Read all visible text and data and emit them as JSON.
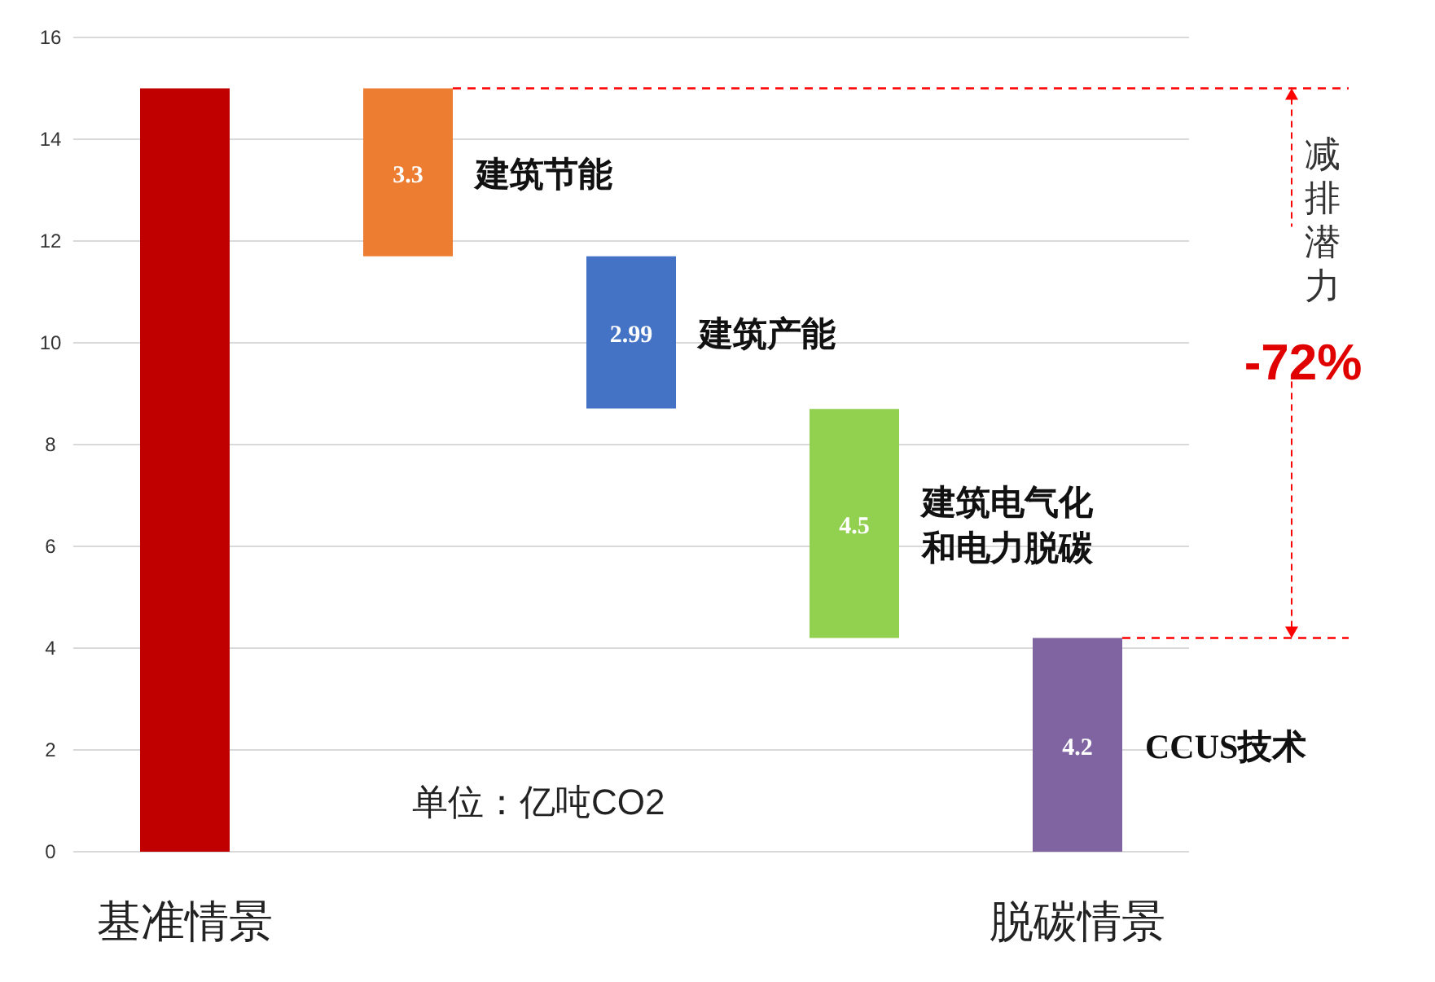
{
  "chart_data": {
    "type": "bar",
    "categories": [
      "基准情景",
      null,
      null,
      null,
      "脱碳情景"
    ],
    "values": [
      15,
      3.3,
      2.99,
      4.5,
      4.2
    ],
    "base": [
      0,
      11.7,
      8.71,
      4.2,
      0
    ],
    "colors": [
      "#c00000",
      "#ed7d31",
      "#4472c4",
      "#92d050",
      "#8064a2"
    ],
    "value_labels": [
      null,
      "3.3",
      "2.99",
      "4.5",
      "4.2"
    ],
    "ylim": [
      0,
      16
    ],
    "yticks": [
      0,
      2,
      4,
      6,
      8,
      10,
      12,
      14,
      16
    ],
    "grid": "y",
    "ref_lines": [
      {
        "axis": "y",
        "value": 15,
        "color": "#ff0000",
        "line_style": "dashed"
      }
    ],
    "annotations": [
      "建筑节能",
      "建筑产能",
      "建筑电气化和电力脱碳",
      "CCUS技术",
      "减排潜力",
      "-72%",
      "单位：亿吨CO2"
    ]
  }
}
